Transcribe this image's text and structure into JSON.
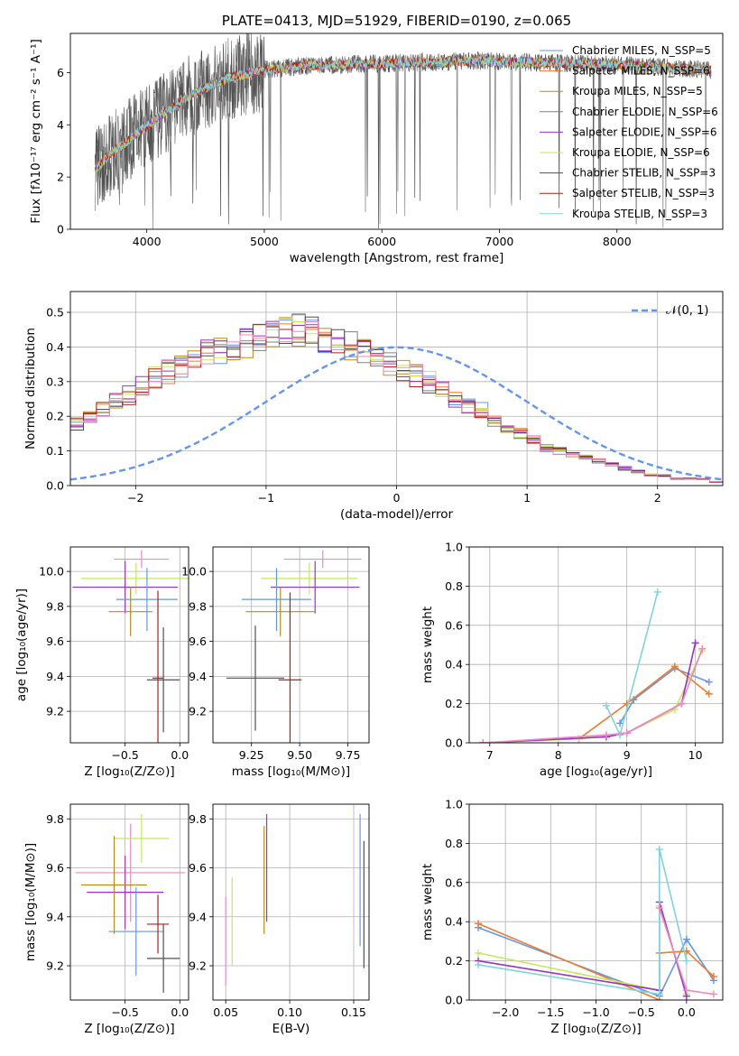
{
  "colors": [
    "#6495ed",
    "#ef7b2a",
    "#bb8915",
    "#808080",
    "#9932cc",
    "#c6e85a",
    "#505050",
    "#b41e1e",
    "#7fd3dc",
    "#ee88c0"
  ],
  "chart_data": [
    {
      "type": "line",
      "title": "PLATE=0413, MJD=51929, FIBERID=0190, z=0.065",
      "xlabel": "wavelength [Angstrom, rest frame]",
      "ylabel": "Flux [fλ10⁻¹⁷ erg cm⁻² s⁻¹ A⁻¹]",
      "xlim": [
        3350,
        8900
      ],
      "ylim": [
        0,
        7.5
      ],
      "xticks": [
        4000,
        5000,
        6000,
        7000,
        8000
      ],
      "xtick_labels": [
        "4000",
        "5000",
        "6000",
        "7000",
        "8000"
      ],
      "yticks": [
        0,
        2,
        4,
        6
      ],
      "ytick_labels": [
        "0",
        "2",
        "4",
        "6"
      ],
      "grid": false,
      "legend_position": "right",
      "legend": [
        "Chabrier MILES, N_SSP=5",
        "Salpeter MILES, N_SSP=6",
        "Kroupa MILES, N_SSP=5",
        "Chabrier ELODIE, N_SSP=6",
        "Salpeter ELODIE, N_SSP=6",
        "Kroupa ELODIE, N_SSP=6",
        "Chabrier STELIB, N_SSP=3",
        "Salpeter STELIB, N_SSP=3",
        "Kroupa STELIB, N_SSP=3"
      ],
      "continuum": {
        "x": [
          3560,
          3700,
          3900,
          4100,
          4400,
          4700,
          5000,
          5300,
          5600,
          6000,
          6400,
          6800,
          7200,
          7600,
          8000,
          8400,
          8800
        ],
        "y": [
          2.3,
          2.9,
          3.6,
          4.3,
          5.2,
          5.8,
          6.1,
          6.25,
          6.3,
          6.35,
          6.4,
          6.45,
          6.4,
          6.35,
          6.3,
          6.2,
          6.1
        ]
      }
    },
    {
      "type": "bar",
      "xlabel": "(data-model)/error",
      "ylabel": "Normed distribution",
      "xlim": [
        -2.5,
        2.5
      ],
      "ylim": [
        0,
        0.56
      ],
      "xticks": [
        -2,
        -1,
        0,
        1,
        2
      ],
      "xtick_labels": [
        "−2",
        "−1",
        "0",
        "1",
        "2"
      ],
      "yticks": [
        0,
        0.1,
        0.2,
        0.3,
        0.4,
        0.5
      ],
      "ytick_labels": [
        "0.0",
        "0.1",
        "0.2",
        "0.3",
        "0.4",
        "0.5"
      ],
      "grid": true,
      "legend_position": "top-right",
      "legend": [
        "𝒩(0, 1)"
      ],
      "bin_width": 0.1,
      "hist": [
        0.02,
        0.02,
        0.03,
        0.03,
        0.05,
        0.05,
        0.05,
        0.06,
        0.07,
        0.08,
        0.1,
        0.12,
        0.14,
        0.14,
        0.16,
        0.18,
        0.2,
        0.22,
        0.24,
        0.26,
        0.29,
        0.31,
        0.33,
        0.35,
        0.36,
        0.38,
        0.39,
        0.4,
        0.41,
        0.42,
        0.43,
        0.44,
        0.45,
        0.44,
        0.43,
        0.41,
        0.4,
        0.38,
        0.36,
        0.35,
        0.34,
        0.32,
        0.3,
        0.28,
        0.25,
        0.23,
        0.22,
        0.19,
        0.16,
        0.15,
        0.13,
        0.11,
        0.1,
        0.09,
        0.08,
        0.07,
        0.06,
        0.05,
        0.04,
        0.03,
        0.03,
        0.02,
        0.02,
        0.02,
        0.01,
        0.01,
        0.01,
        0.01,
        0.01,
        0.01,
        0.01,
        0.01,
        0.01,
        0.01,
        0.01,
        0.01,
        0.01,
        0.01,
        0.01,
        0.01
      ],
      "normal_curve": {
        "mean": 0,
        "sigma": 1
      }
    },
    {
      "type": "scatter",
      "xlabel": "Z [log₁₀(Z/Z⊙)]",
      "ylabel": "age  [log₁₀(age/yr)]",
      "xlim": [
        -1.0,
        0.08
      ],
      "ylim": [
        9.02,
        10.14
      ],
      "xticks": [
        -0.5,
        0.0
      ],
      "xtick_labels": [
        "−0.5",
        "0.0"
      ],
      "yticks": [
        9.2,
        9.4,
        9.6,
        9.8,
        10.0
      ],
      "ytick_labels": [
        "9.2",
        "9.4",
        "9.6",
        "9.8",
        "10.0"
      ],
      "grid": true,
      "points": [
        {
          "x": -0.35,
          "xerr": 0.25,
          "y": 10.07,
          "yerr": 0.05
        },
        {
          "x": -0.4,
          "xerr": 0.5,
          "y": 9.96,
          "yerr": 0.09
        },
        {
          "x": -0.5,
          "xerr": 0.48,
          "y": 9.91,
          "yerr": 0.15
        },
        {
          "x": -0.45,
          "xerr": 0.2,
          "y": 9.77,
          "yerr": 0.14
        },
        {
          "x": -0.3,
          "xerr": 0.28,
          "y": 9.84,
          "yerr": 0.18
        },
        {
          "x": -0.15,
          "xerr": 0.15,
          "y": 9.38,
          "yerr": 0.3
        },
        {
          "x": -0.2,
          "xerr": 0.05,
          "y": 9.39,
          "yerr": 0.5
        }
      ]
    },
    {
      "type": "scatter",
      "xlabel": "mass [log₁₀(M/M⊙)]",
      "ylabel": "",
      "xlim": [
        9.05,
        9.86
      ],
      "ylim": [
        9.02,
        10.14
      ],
      "xticks": [
        9.25,
        9.5,
        9.75
      ],
      "xtick_labels": [
        "9.25",
        "9.50",
        "9.75"
      ],
      "yticks": [
        9.2,
        9.4,
        9.6,
        9.8,
        10.0
      ],
      "ytick_labels": [
        "9.2",
        "9.4",
        "9.6",
        "9.8",
        "10.0"
      ],
      "grid": true,
      "points": [
        {
          "x": 9.62,
          "xerr": 0.2,
          "y": 10.07,
          "yerr": 0.05
        },
        {
          "x": 9.55,
          "xerr": 0.25,
          "y": 9.96,
          "yerr": 0.09
        },
        {
          "x": 9.58,
          "xerr": 0.23,
          "y": 9.91,
          "yerr": 0.15
        },
        {
          "x": 9.4,
          "xerr": 0.18,
          "y": 9.77,
          "yerr": 0.14
        },
        {
          "x": 9.38,
          "xerr": 0.18,
          "y": 9.84,
          "yerr": 0.18
        },
        {
          "x": 9.27,
          "xerr": 0.15,
          "y": 9.39,
          "yerr": 0.3
        },
        {
          "x": 9.45,
          "xerr": 0.06,
          "y": 9.38,
          "yerr": 0.5
        }
      ]
    },
    {
      "type": "line",
      "xlabel": "age  [log₁₀(age/yr)]",
      "ylabel": "mass weight",
      "xlim": [
        6.7,
        10.4
      ],
      "ylim": [
        0,
        1.0
      ],
      "xticks": [
        7,
        8,
        9,
        10
      ],
      "xtick_labels": [
        "7",
        "8",
        "9",
        "10"
      ],
      "yticks": [
        0,
        0.2,
        0.4,
        0.6,
        0.8,
        1.0
      ],
      "ytick_labels": [
        "0.0",
        "0.2",
        "0.4",
        "0.6",
        "0.8",
        "1.0"
      ],
      "grid": true,
      "series": [
        {
          "x": [
            8.9,
            9.1,
            9.7,
            10.2
          ],
          "y": [
            0.1,
            0.22,
            0.38,
            0.31
          ]
        },
        {
          "x": [
            8.3,
            9.0,
            9.7,
            10.2
          ],
          "y": [
            0.02,
            0.2,
            0.39,
            0.25
          ]
        },
        {
          "x": [
            6.9,
            8.3,
            9.0,
            9.7,
            10.1
          ],
          "y": [
            0.0,
            0.02,
            0.05,
            0.17,
            0.47
          ]
        },
        {
          "x": [
            6.9,
            8.7,
            9.0,
            9.8,
            10.0
          ],
          "y": [
            0.0,
            0.03,
            0.05,
            0.2,
            0.51
          ]
        },
        {
          "x": [
            8.7,
            8.9,
            9.45
          ],
          "y": [
            0.19,
            0.04,
            0.77
          ]
        },
        {
          "x": [
            6.9,
            8.7,
            9.0,
            9.8,
            10.1
          ],
          "y": [
            0.0,
            0.04,
            0.05,
            0.2,
            0.48
          ]
        }
      ]
    },
    {
      "type": "scatter",
      "xlabel": "Z [log₁₀(Z/Z⊙)]",
      "ylabel": "mass [log₁₀(M/M⊙)]",
      "xlim": [
        -1.0,
        0.08
      ],
      "ylim": [
        9.06,
        9.86
      ],
      "xticks": [
        -0.5,
        0.0
      ],
      "xtick_labels": [
        "−0.5",
        "0.0"
      ],
      "yticks": [
        9.2,
        9.4,
        9.6,
        9.8
      ],
      "ytick_labels": [
        "9.2",
        "9.4",
        "9.6",
        "9.8"
      ],
      "grid": true,
      "points": [
        {
          "x": -0.45,
          "xerr": 0.5,
          "y": 9.58,
          "yerr": 0.2
        },
        {
          "x": -0.35,
          "xerr": 0.25,
          "y": 9.72,
          "yerr": 0.1
        },
        {
          "x": -0.5,
          "xerr": 0.35,
          "y": 9.5,
          "yerr": 0.15
        },
        {
          "x": -0.6,
          "xerr": 0.3,
          "y": 9.53,
          "yerr": 0.2
        },
        {
          "x": -0.4,
          "xerr": 0.25,
          "y": 9.34,
          "yerr": 0.18
        },
        {
          "x": -0.15,
          "xerr": 0.15,
          "y": 9.23,
          "yerr": 0.14
        },
        {
          "x": -0.2,
          "xerr": 0.1,
          "y": 9.37,
          "yerr": 0.12
        }
      ]
    },
    {
      "type": "scatter",
      "xlabel": "E(B-V)",
      "ylabel": "",
      "xlim": [
        0.04,
        0.162
      ],
      "ylim": [
        9.06,
        9.86
      ],
      "xticks": [
        0.05,
        0.1,
        0.15
      ],
      "xtick_labels": [
        "0.05",
        "0.10",
        "0.15"
      ],
      "yticks": [
        9.2,
        9.4,
        9.6,
        9.8
      ],
      "ytick_labels": [
        "9.2",
        "9.4",
        "9.6",
        "9.8"
      ],
      "grid": true,
      "points": [
        {
          "x": 0.05,
          "xerr": 0.0,
          "y": 9.3,
          "yerr": 0.18
        },
        {
          "x": 0.055,
          "xerr": 0.0,
          "y": 9.38,
          "yerr": 0.18
        },
        {
          "x": 0.082,
          "xerr": 0.0,
          "y": 9.6,
          "yerr": 0.22
        },
        {
          "x": 0.08,
          "xerr": 0.0,
          "y": 9.55,
          "yerr": 0.22
        },
        {
          "x": 0.155,
          "xerr": 0.0,
          "y": 9.55,
          "yerr": 0.27
        },
        {
          "x": 0.158,
          "xerr": 0.0,
          "y": 9.45,
          "yerr": 0.26
        }
      ]
    },
    {
      "type": "line",
      "xlabel": "Z [log₁₀(Z/Z⊙)]",
      "ylabel": "mass weight",
      "xlim": [
        -2.4,
        0.4
      ],
      "ylim": [
        0,
        1.0
      ],
      "xticks": [
        -2.0,
        -1.5,
        -1.0,
        -0.5,
        0.0
      ],
      "xtick_labels": [
        "−2.0",
        "−1.5",
        "−1.0",
        "−0.5",
        "0.0"
      ],
      "yticks": [
        0,
        0.2,
        0.4,
        0.6,
        0.8,
        1.0
      ],
      "ytick_labels": [
        "0.0",
        "0.2",
        "0.4",
        "0.6",
        "0.8",
        "1.0"
      ],
      "grid": true,
      "series": [
        {
          "x": [
            -2.3,
            -0.3,
            0.0,
            0.3
          ],
          "y": [
            0.37,
            0.02,
            0.31,
            0.1
          ]
        },
        {
          "x": [
            -2.3,
            -0.3,
            -0.3,
            0.0,
            0.3
          ],
          "y": [
            0.39,
            0.0,
            0.24,
            0.25,
            0.12
          ]
        },
        {
          "x": [
            -2.3,
            -0.3,
            -0.3,
            0.0
          ],
          "y": [
            0.24,
            0.05,
            0.48,
            0.03
          ]
        },
        {
          "x": [
            -2.3,
            -0.3,
            -0.3,
            0.0
          ],
          "y": [
            0.2,
            0.05,
            0.5,
            0.02
          ]
        },
        {
          "x": [
            -2.3,
            -0.3,
            -0.3,
            0.0
          ],
          "y": [
            0.18,
            0.03,
            0.77,
            0.2
          ]
        },
        {
          "x": [
            -0.3,
            0.0,
            0.3
          ],
          "y": [
            0.47,
            0.05,
            0.03
          ]
        }
      ]
    }
  ]
}
